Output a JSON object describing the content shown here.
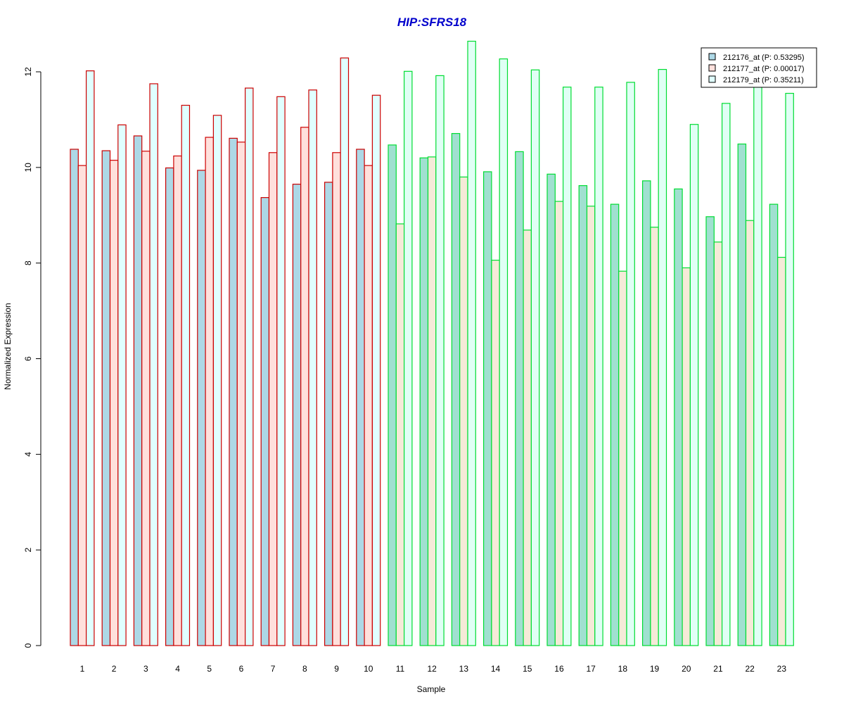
{
  "chart_data": {
    "type": "bar",
    "title": "HIP:SFRS18",
    "xlabel": "Sample",
    "ylabel": "Normalized Expression",
    "ylim": [
      0,
      12.6
    ],
    "yticks": [
      0,
      2,
      4,
      6,
      8,
      10,
      12
    ],
    "grid": false,
    "legend_position": "top-right",
    "categories": [
      "1",
      "2",
      "3",
      "4",
      "5",
      "6",
      "7",
      "8",
      "9",
      "10",
      "11",
      "12",
      "13",
      "14",
      "15",
      "16",
      "17",
      "18",
      "19",
      "20",
      "21",
      "22",
      "23"
    ],
    "group_border_colors": [
      "#cc0000",
      "#cc0000",
      "#cc0000",
      "#cc0000",
      "#cc0000",
      "#cc0000",
      "#cc0000",
      "#cc0000",
      "#cc0000",
      "#cc0000",
      "#00dd33",
      "#00dd33",
      "#00dd33",
      "#00dd33",
      "#00dd33",
      "#00dd33",
      "#00dd33",
      "#00dd33",
      "#00dd33",
      "#00dd33",
      "#00dd33",
      "#00dd33",
      "#00dd33"
    ],
    "series": [
      {
        "name": "212176_at (P: 0.53295)",
        "color": "#add8e6",
        "alt_color": "#a0e0d0",
        "values": [
          10.38,
          10.35,
          10.66,
          9.99,
          9.94,
          10.61,
          9.37,
          9.65,
          9.69,
          10.38,
          10.47,
          10.2,
          10.71,
          9.91,
          10.33,
          9.86,
          9.62,
          9.23,
          9.72,
          9.55,
          8.97,
          10.49,
          9.23
        ]
      },
      {
        "name": "212177_at (P: 0.00017)",
        "color": "#ffe0dc",
        "alt_color": "#f5ead8",
        "values": [
          10.04,
          10.15,
          10.34,
          10.24,
          10.63,
          10.53,
          10.31,
          10.84,
          10.31,
          10.04,
          8.82,
          10.22,
          9.8,
          8.06,
          8.69,
          9.29,
          9.19,
          7.83,
          8.75,
          7.9,
          8.44,
          8.89,
          8.12
        ]
      },
      {
        "name": "212179_at (P: 0.35211)",
        "color": "#e0ffff",
        "alt_color": "#e0fff5",
        "values": [
          12.02,
          10.89,
          11.75,
          11.3,
          11.09,
          11.66,
          11.48,
          11.62,
          12.29,
          11.51,
          12.01,
          11.92,
          12.64,
          12.27,
          12.04,
          11.68,
          11.68,
          11.78,
          12.05,
          10.9,
          11.34,
          11.83,
          11.55
        ]
      }
    ]
  },
  "colors": {
    "title": "#0000cc",
    "axis": "#000000"
  }
}
